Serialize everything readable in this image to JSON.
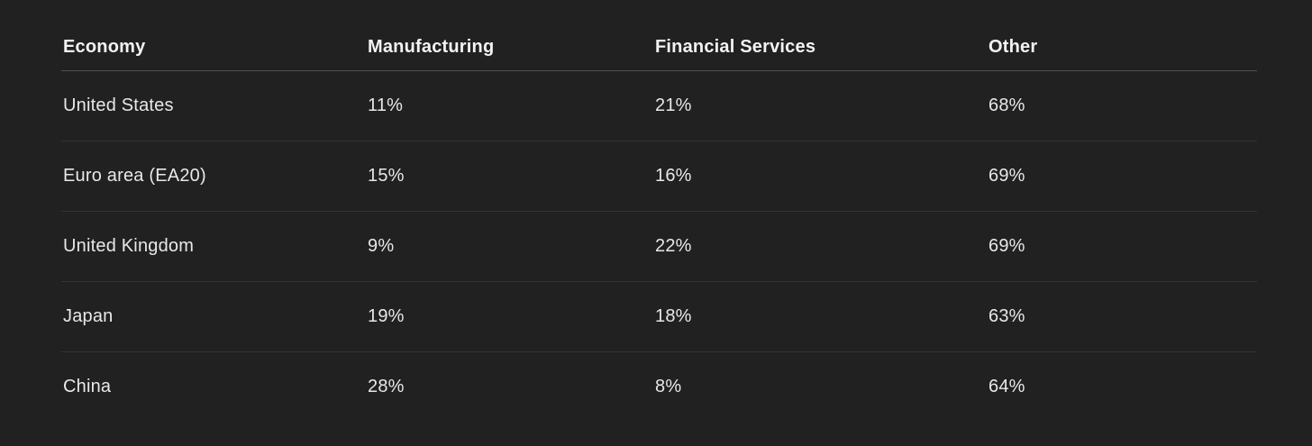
{
  "table": {
    "headers": [
      "Economy",
      "Manufacturing",
      "Financial Services",
      "Other"
    ],
    "rows": [
      [
        "United States",
        "11%",
        "21%",
        "68%"
      ],
      [
        "Euro area (EA20)",
        "15%",
        "16%",
        "69%"
      ],
      [
        "United Kingdom",
        "9%",
        "22%",
        "69%"
      ],
      [
        "Japan",
        "19%",
        "18%",
        "63%"
      ],
      [
        "China",
        "28%",
        "8%",
        "64%"
      ]
    ]
  },
  "colors": {
    "background": "#212121",
    "text": "#e8e8e8",
    "header_text": "#f3f3f3",
    "header_divider": "#505050",
    "row_divider": "#343434"
  }
}
